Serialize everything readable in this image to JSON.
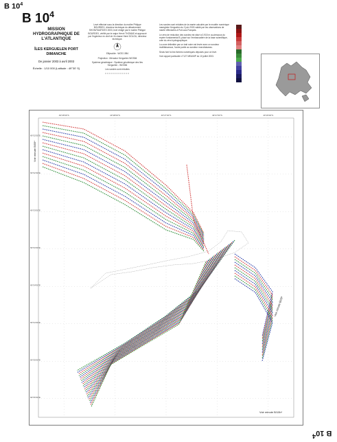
{
  "sheet": {
    "ref_top": "B 10",
    "ref_main": "B 10",
    "ref_sup": "4",
    "ref_bottom": "B 10"
  },
  "title": {
    "mission": "MISSION HYDROGRAPHIQUE DE L'ATLANTIQUE",
    "location": "ÎLES KERGUELEN PORT DIMANCHE",
    "dates": "De janvier 2003 à avril 2003",
    "scale": "Échelle : 1/10 000 (Latitude : 49°30' S)"
  },
  "info_center": {
    "credits": "Levé effectué sous la direction du maître Philippe BOURDEX, directeur technique du détachement SHOM/TAAF/DEX 2003, levé rédigé par le maître Philippe BOURDEX, vérifié par le major Hervé THOMAS et approuvé par l'ingénieur en chef de 2e classe Henri DOLOU, directeur technique.",
    "ellipsoid": "Ellipsoïde : WGS 1984",
    "projection": "Projection : Mercator Kerguelen WGS84",
    "geodetic": "Système géodésique : Système géodésique des îles Kerguelen - WGS84",
    "soundings": "Les sondes sont réduites"
  },
  "info_right": {
    "p1": "Les sondes sont réduites de la marée calculée par le modèle numérique mareglobe Kerguelen du 2 juin 2003 validé par les observations de marée effectuées à Port-aux-Français.",
    "p2": "Le zéro de réduction des sondes est situé à 0,915 m au-dessous du repère fondamental B, placé sur l'embarcadère de la base scientifique, cote du zéro hydrographique.",
    "p3": "La zone délimitée par un trait noire est levée avec un sondeur multifaisceaux, l'autre partie au sondeur monofaisceau.",
    "p4": "Seuls font foi les fichiers numériques déposés pour ce levé.",
    "p5": "Voir rapport particulier n°127 MEA/MP du 10 juillet 2003."
  },
  "labels": {
    "minute_left": "Voir minute B/09*",
    "minute_right": "Voir minute B/09*",
    "minute_bottom": "Voir minute B/10b*"
  },
  "colors": {
    "palette": [
      "#5a1a1a",
      "#8a1212",
      "#b01818",
      "#c83a3a",
      "#d46060",
      "#e08080",
      "#2a6a2a",
      "#3a8a3a",
      "#4aaa4a",
      "#6060b0",
      "#4040a0",
      "#2a2a88",
      "#1a1a60",
      "#101040"
    ],
    "red_sounding": "#d23c3c",
    "green_sounding": "#2f8f3a",
    "blue_sounding": "#2a3ea8",
    "inset_land": "#9a9a9a"
  },
  "grid": {
    "top_ticks": [
      "49°28'30\"S",
      "49°28'00\"S",
      "49°27'30\"S",
      "49°27'00\"S",
      "49°26'30\"S"
    ],
    "left_ticks": [
      "69°32'00\"E",
      "69°32'30\"E",
      "69°33'00\"E",
      "69°33'30\"E",
      "69°34'00\"E",
      "69°34'30\"E",
      "69°35'00\"E",
      "69°35'30\"E"
    ]
  }
}
